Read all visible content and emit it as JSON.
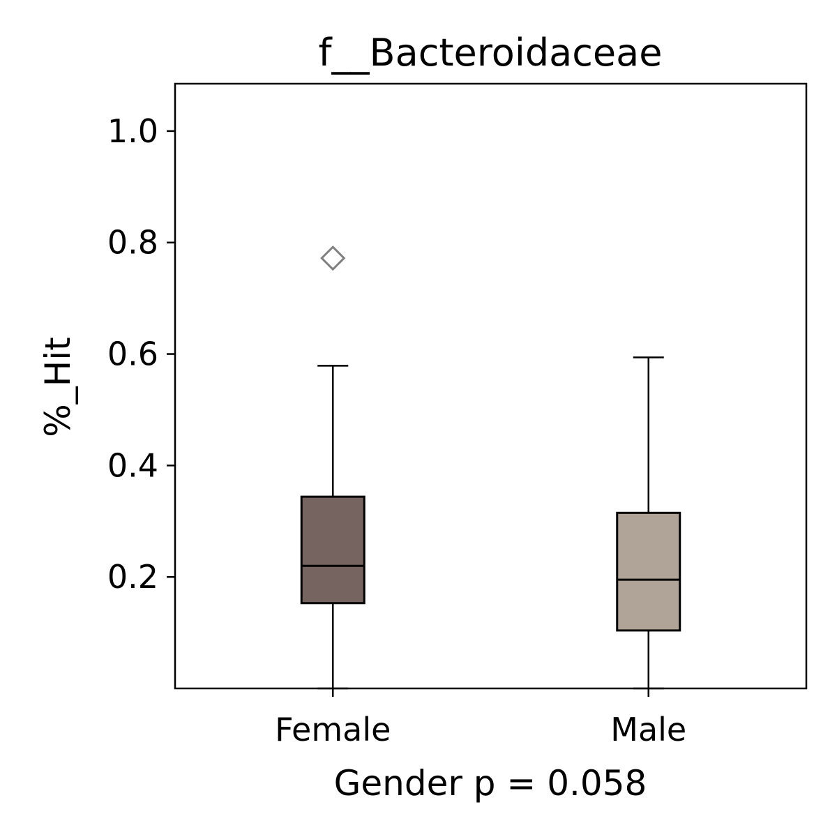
{
  "chart_data": {
    "type": "box",
    "title": "f__Bacteroidaceae",
    "xlabel": "Gender p = 0.058",
    "ylabel": "%_Hit",
    "categories": [
      "Female",
      "Male"
    ],
    "yticks": [
      0.2,
      0.4,
      0.6,
      0.8,
      1.0
    ],
    "ytick_labels": [
      "0.2",
      "0.4",
      "0.6",
      "0.8",
      "1.0"
    ],
    "ylim": [
      0.0,
      1.085
    ],
    "grid": false,
    "boxes": [
      {
        "category": "Female",
        "whisker_low": 0.0,
        "q1": 0.153,
        "median": 0.22,
        "q3": 0.344,
        "whisker_high": 0.579,
        "outliers": [
          0.772
        ],
        "color": "#75645f"
      },
      {
        "category": "Male",
        "whisker_low": 0.0,
        "q1": 0.104,
        "median": 0.195,
        "q3": 0.315,
        "whisker_high": 0.594,
        "outliers": [],
        "color": "#b0a398"
      }
    ],
    "outlier_color": "#808080"
  }
}
